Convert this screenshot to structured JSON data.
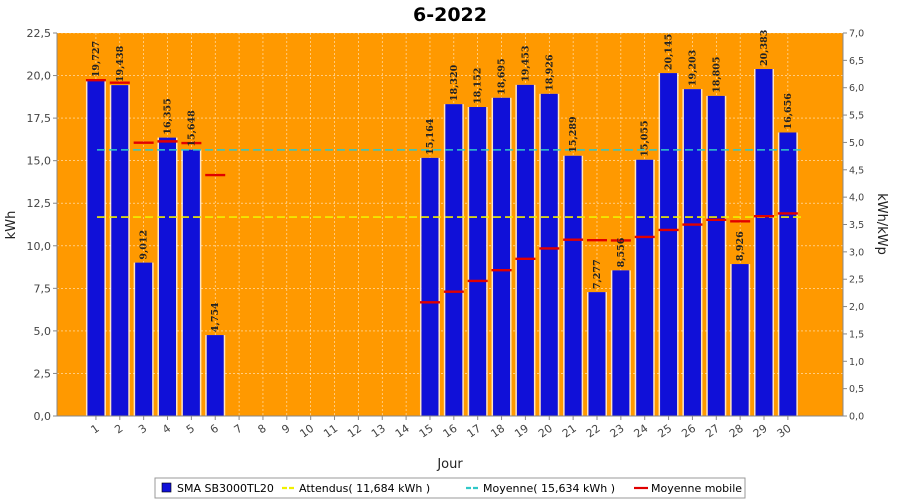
{
  "chart_data": {
    "type": "bar",
    "title": "6-2022",
    "xlabel": "Jour",
    "ylabel": "kWh",
    "y2label": "kWh/kWp",
    "ylim": [
      0,
      22.5
    ],
    "y2lim": [
      0,
      7.0
    ],
    "yticks": [
      "0,0",
      "2,5",
      "5,0",
      "7,5",
      "10,0",
      "12,5",
      "15,0",
      "17,5",
      "20,0",
      "22,5"
    ],
    "y2ticks": [
      "0,0",
      "0,5",
      "1,0",
      "1,5",
      "2,0",
      "2,5",
      "3,0",
      "3,5",
      "4,0",
      "4,5",
      "5,0",
      "5,5",
      "6,0",
      "6,5",
      "7,0"
    ],
    "categories": [
      "1",
      "2",
      "3",
      "4",
      "5",
      "6",
      "7",
      "8",
      "9",
      "10",
      "11",
      "12",
      "13",
      "14",
      "15",
      "16",
      "17",
      "18",
      "19",
      "20",
      "21",
      "22",
      "23",
      "24",
      "25",
      "26",
      "27",
      "28",
      "29",
      "30"
    ],
    "series": [
      {
        "name": "SMA SB3000TL20",
        "type": "bar",
        "values": [
          19.727,
          19.438,
          9.012,
          16.355,
          15.648,
          4.754,
          0,
          0,
          0,
          0,
          0,
          0,
          0,
          0,
          15.164,
          18.32,
          18.152,
          18.695,
          19.453,
          18.926,
          15.289,
          7.277,
          8.556,
          15.055,
          20.145,
          19.203,
          18.805,
          8.926,
          20.383,
          16.656
        ],
        "labels": [
          "19,727",
          "19,438",
          "9,012",
          "16,355",
          "15,648",
          "4,754",
          "",
          "",
          "",
          "",
          "",
          "",
          "",
          "",
          "15,164",
          "18,320",
          "18,152",
          "18,695",
          "19,453",
          "18,926",
          "15,289",
          "7,277",
          "8,556",
          "15,055",
          "20,145",
          "19,203",
          "18,805",
          "8,926",
          "20,383",
          "16,656"
        ]
      },
      {
        "name": "Moyenne mobile",
        "type": "step",
        "values": [
          19.727,
          19.583,
          16.059,
          16.133,
          16.036,
          14.156,
          null,
          null,
          null,
          null,
          null,
          null,
          null,
          null,
          6.68,
          7.303,
          7.934,
          8.568,
          9.232,
          9.846,
          10.356,
          10.329,
          10.316,
          10.521,
          10.929,
          11.248,
          11.528,
          11.436,
          11.738,
          11.901
        ]
      }
    ],
    "reference_lines": [
      {
        "name": "Attendus",
        "value": 11.684,
        "label": "Attendus( 11,684 kWh )"
      },
      {
        "name": "Moyenne",
        "value": 15.634,
        "label": "Moyenne( 15,634 kWh )"
      }
    ],
    "grid": true,
    "legend_position": "bottom"
  },
  "legend": {
    "items": [
      {
        "label": "SMA SB3000TL20",
        "color": "#1010d8",
        "kind": "box"
      },
      {
        "label": "Attendus( 11,684 kWh )",
        "color": "#f0f000",
        "kind": "line"
      },
      {
        "label": "Moyenne( 15,634 kWh )",
        "color": "#30c8c8",
        "kind": "line"
      },
      {
        "label": "Moyenne mobile",
        "color": "#e00000",
        "kind": "line"
      }
    ]
  },
  "colors": {
    "plot_bg": "#ff9900",
    "bar": "#1010d8",
    "expected_line": "#f0f000",
    "average_line": "#30c8c8",
    "moving_average": "#e00000"
  }
}
